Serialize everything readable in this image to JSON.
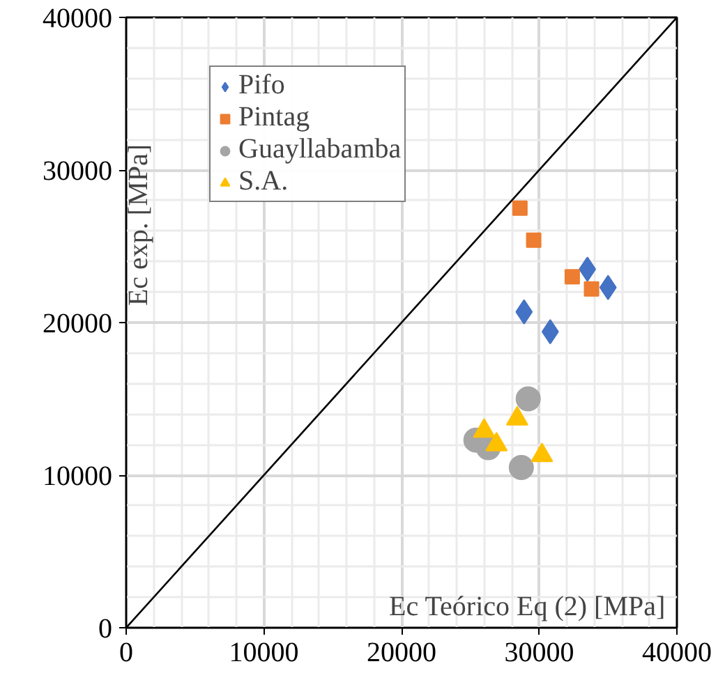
{
  "chart_data": {
    "type": "scatter",
    "xlabel": "Ec Teórico Eq (2) [MPa]",
    "ylabel": "Ec exp. [MPa]",
    "xlim": [
      0,
      40000
    ],
    "ylim": [
      0,
      40000
    ],
    "xticks": [
      0,
      10000,
      20000,
      30000,
      40000
    ],
    "yticks": [
      0,
      10000,
      20000,
      30000,
      40000
    ],
    "grid": true,
    "legend": "top left",
    "series": [
      {
        "name": "Pifo",
        "color": "#4472c4",
        "marker": "diamond",
        "x": [
          33500,
          35000,
          28900,
          30800
        ],
        "values": [
          23500,
          22300,
          20700,
          19400
        ]
      },
      {
        "name": "Pintag",
        "color": "#ed7d31",
        "marker": "square",
        "x": [
          28600,
          29600,
          32400,
          33800
        ],
        "values": [
          27500,
          25400,
          23000,
          22200
        ]
      },
      {
        "name": "Guayllabamba",
        "color": "#a5a5a5",
        "marker": "circle",
        "x": [
          29200,
          28700,
          25400,
          26300
        ],
        "values": [
          15000,
          10500,
          12300,
          11800
        ]
      },
      {
        "name": "S.A.",
        "color": "#ffc000",
        "marker": "triangle",
        "x": [
          28400,
          26000,
          26900,
          30200
        ],
        "values": [
          13700,
          12900,
          12000,
          11300
        ]
      },
      {
        "type": "line",
        "color": "#000000",
        "marker": "none",
        "x": [
          0,
          40000
        ],
        "values": [
          0,
          40000
        ]
      }
    ]
  }
}
